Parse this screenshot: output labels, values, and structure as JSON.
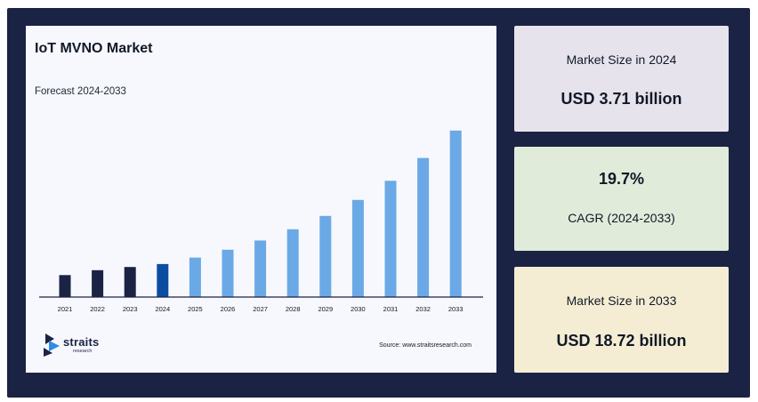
{
  "chart_data": {
    "type": "bar",
    "title": "IoT MVNO Market",
    "subtitle": "Forecast 2024-2033",
    "categories": [
      "2021",
      "2022",
      "2023",
      "2024",
      "2025",
      "2026",
      "2027",
      "2028",
      "2029",
      "2030",
      "2031",
      "2032",
      "2033"
    ],
    "values": [
      2.47,
      3.02,
      3.38,
      3.71,
      4.44,
      5.32,
      6.36,
      7.62,
      9.12,
      10.92,
      13.07,
      15.64,
      18.72
    ],
    "ylim": [
      0,
      20
    ],
    "grid": false,
    "bar_colors": {
      "historical": "#1b2344",
      "base_year": "#0c4da2",
      "forecast": "#6aa9e6"
    },
    "base_year": "2024"
  },
  "logo": {
    "name": "straits",
    "sub": "research"
  },
  "source": "Source: www.straitsresearch.com",
  "stats": [
    {
      "label": "Market Size in 2024",
      "value": "USD 3.71 billion"
    },
    {
      "value": "19.7%",
      "label": "CAGR (2024-2033)"
    },
    {
      "label": "Market Size in 2033",
      "value": "USD 18.72 billion"
    }
  ]
}
